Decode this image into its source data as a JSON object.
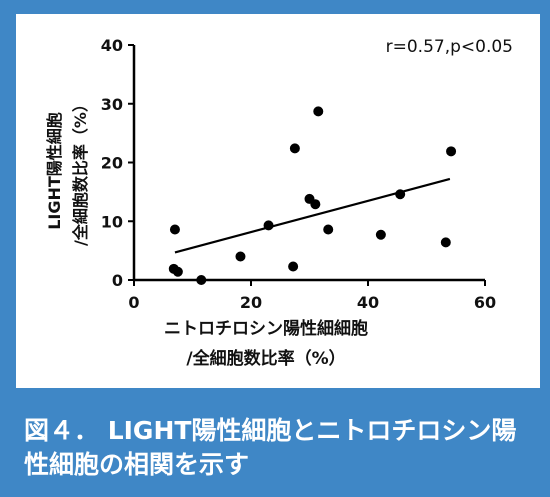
{
  "chart_data": {
    "type": "scatter",
    "title": "",
    "annotation": "r=0.57,p<0.05",
    "xlabel_line1": "ニトロチロシン陽性細細胞",
    "xlabel_line2": "/全細胞数比率（%）",
    "ylabel_line1": "LIGHT陽性細胞",
    "ylabel_line2": "/全細胞数比率（%）",
    "xlim": [
      0,
      60
    ],
    "ylim": [
      0,
      40
    ],
    "x_ticks": [
      "0",
      "20",
      "40",
      "60"
    ],
    "y_ticks": [
      "0",
      "10",
      "20",
      "30",
      "40"
    ],
    "points": [
      {
        "x": 6.8,
        "y": 1.9
      },
      {
        "x": 7.5,
        "y": 1.4
      },
      {
        "x": 7.0,
        "y": 8.6
      },
      {
        "x": 11.5,
        "y": 0.0
      },
      {
        "x": 18.2,
        "y": 4.0
      },
      {
        "x": 23.0,
        "y": 9.3
      },
      {
        "x": 27.2,
        "y": 2.3
      },
      {
        "x": 27.5,
        "y": 22.4
      },
      {
        "x": 30.0,
        "y": 13.8
      },
      {
        "x": 31.0,
        "y": 12.9
      },
      {
        "x": 31.5,
        "y": 28.7
      },
      {
        "x": 33.2,
        "y": 8.6
      },
      {
        "x": 42.2,
        "y": 7.7
      },
      {
        "x": 45.5,
        "y": 14.6
      },
      {
        "x": 53.3,
        "y": 6.4
      },
      {
        "x": 54.2,
        "y": 21.9
      }
    ],
    "regression_line": {
      "x": [
        7.0,
        54.0
      ],
      "y": [
        4.7,
        17.2
      ]
    },
    "grid": false,
    "legend": "none"
  },
  "caption": {
    "line1": "図４． LIGHT陽性細胞とニトロチロシン陽",
    "line2": "性細胞の相関を示す"
  }
}
